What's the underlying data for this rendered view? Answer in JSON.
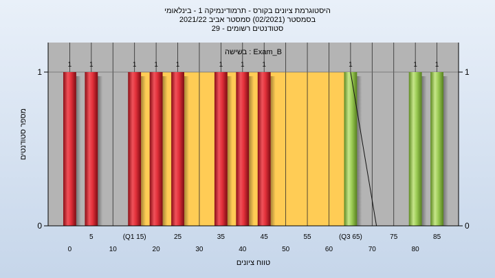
{
  "title_lines": [
    "היסטוגרמת ציונים בקורס - תרמודינמיקה 1 - בינלאומי",
    "בסמסטר  (02/2021)  סמסטר אביב 2021/22",
    "סטודנטים רשומים - 29"
  ],
  "chart_data": {
    "type": "bar",
    "annotation": "בשישה : Exam_B",
    "ylabel": "מספר סטודנטים",
    "xlabel": "טווח ציונים",
    "xlim": [
      -5,
      90
    ],
    "ylim": [
      0,
      1
    ],
    "y_ticks": [
      "0",
      "1"
    ],
    "x_tick_labels": [
      {
        "x": 0,
        "label": "0"
      },
      {
        "x": 5,
        "label": "5"
      },
      {
        "x": 10,
        "label": "10"
      },
      {
        "x": 15,
        "label": "(Q1 15)"
      },
      {
        "x": 20,
        "label": "20"
      },
      {
        "x": 25,
        "label": "25"
      },
      {
        "x": 30,
        "label": "30"
      },
      {
        "x": 35,
        "label": "35"
      },
      {
        "x": 40,
        "label": "40"
      },
      {
        "x": 45,
        "label": "45"
      },
      {
        "x": 50,
        "label": "50"
      },
      {
        "x": 55,
        "label": "55"
      },
      {
        "x": 60,
        "label": "60"
      },
      {
        "x": 65,
        "label": "(Q3 65)"
      },
      {
        "x": 70,
        "label": "70"
      },
      {
        "x": 75,
        "label": "75"
      },
      {
        "x": 80,
        "label": "80"
      },
      {
        "x": 85,
        "label": "85"
      }
    ],
    "bars": [
      {
        "x": 0,
        "value": 1,
        "label": "1",
        "group": "low"
      },
      {
        "x": 5,
        "value": 1,
        "label": "1",
        "group": "low"
      },
      {
        "x": 15,
        "value": 1,
        "label": "1",
        "group": "low"
      },
      {
        "x": 20,
        "value": 1,
        "label": "1",
        "group": "low"
      },
      {
        "x": 25,
        "value": 1,
        "label": "1",
        "group": "low"
      },
      {
        "x": 35,
        "value": 1,
        "label": "1",
        "group": "low"
      },
      {
        "x": 40,
        "value": 1,
        "label": "1",
        "group": "low"
      },
      {
        "x": 45,
        "value": 1,
        "label": "1",
        "group": "low"
      },
      {
        "x": 65,
        "value": 1,
        "label": "1",
        "group": "high"
      },
      {
        "x": 80,
        "value": 1,
        "label": "1",
        "group": "high"
      },
      {
        "x": 85,
        "value": 1,
        "label": "1",
        "group": "high"
      }
    ],
    "iqr_band": [
      15,
      65
    ],
    "trend_line": [
      {
        "x": 65,
        "y": 1
      },
      {
        "x": 71,
        "y": 0
      }
    ],
    "colors": {
      "plot_bg": "#b4b4b4",
      "iqr_band": "#ffcc55",
      "low_bar": "#e2303a",
      "high_bar": "#9ccc55",
      "grid": "#2a2a2a"
    }
  }
}
